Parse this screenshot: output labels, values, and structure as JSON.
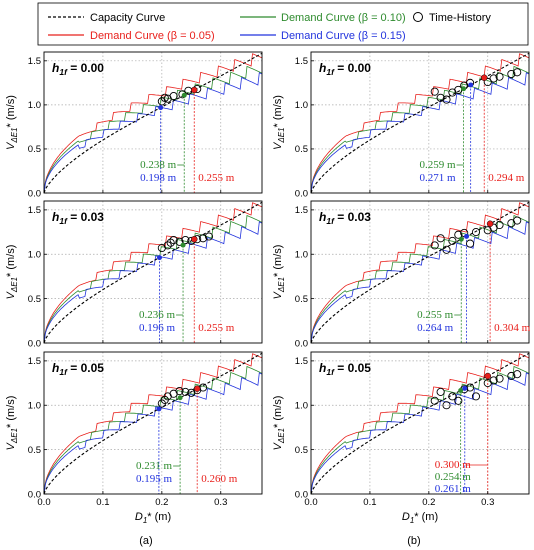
{
  "legend": {
    "items": [
      {
        "label": "Capacity Curve",
        "color": "#000000",
        "style": "dashed"
      },
      {
        "label": "Demand Curve (β = 0.05)",
        "color": "#e8201c",
        "style": "solid"
      },
      {
        "label": "Demand Curve (β = 0.10)",
        "color": "#2e8b2e",
        "style": "solid"
      },
      {
        "label": "Demand Curve (β = 0.15)",
        "color": "#2233dd",
        "style": "solid"
      },
      {
        "label": "Time-History",
        "color": "#000000",
        "style": "circle"
      }
    ]
  },
  "colors": {
    "red": "#e8201c",
    "green": "#2e8b2e",
    "blue": "#2233dd",
    "black": "#000000"
  },
  "axes": {
    "ylabel_main": "V",
    "ylabel_sub": "ΔE1",
    "ylabel_unit": "* (m/s)",
    "xlabel_main": "D",
    "xlabel_sub": "1",
    "xlabel_sub2": "max",
    "xlabel_unit": "* (m)",
    "xticks": [
      "0.0",
      "0.1",
      "0.2",
      "0.3"
    ],
    "yticks": [
      "0.0",
      "0.5",
      "1.0",
      "1.5"
    ],
    "xlim": [
      0,
      0.37
    ],
    "ylim": [
      0,
      1.6
    ]
  },
  "column_labels": [
    "(a)",
    "(b)"
  ],
  "chart_data": [
    {
      "type": "line",
      "panel": "a1",
      "h_label": "0.00",
      "annotations": [
        {
          "text": "0.238 m",
          "color": "green"
        },
        {
          "text": "0.198 m",
          "color": "blue"
        },
        {
          "text": "0.255 m",
          "color": "red"
        }
      ],
      "intersections": {
        "red": 0.255,
        "green": 0.238,
        "blue": 0.198
      },
      "time_history": [
        [
          0.2,
          1.04
        ],
        [
          0.205,
          1.08
        ],
        [
          0.21,
          1.07
        ],
        [
          0.22,
          1.1
        ],
        [
          0.235,
          1.12
        ],
        [
          0.245,
          1.16
        ],
        [
          0.26,
          1.18
        ]
      ]
    },
    {
      "type": "line",
      "panel": "a2",
      "h_label": "0.03",
      "annotations": [
        {
          "text": "0.236 m",
          "color": "green"
        },
        {
          "text": "0.196 m",
          "color": "blue"
        },
        {
          "text": "0.255 m",
          "color": "red"
        }
      ],
      "intersections": {
        "red": 0.255,
        "green": 0.236,
        "blue": 0.196
      },
      "time_history": [
        [
          0.2,
          1.07
        ],
        [
          0.21,
          1.1
        ],
        [
          0.215,
          1.13
        ],
        [
          0.22,
          1.16
        ],
        [
          0.23,
          1.14
        ],
        [
          0.24,
          1.16
        ],
        [
          0.25,
          1.15
        ],
        [
          0.26,
          1.17
        ],
        [
          0.27,
          1.18
        ],
        [
          0.28,
          1.2
        ]
      ]
    },
    {
      "type": "line",
      "panel": "a3",
      "h_label": "0.05",
      "annotations": [
        {
          "text": "0.231 m",
          "color": "green"
        },
        {
          "text": "0.195 m",
          "color": "blue"
        },
        {
          "text": "0.260 m",
          "color": "red"
        }
      ],
      "intersections": {
        "red": 0.26,
        "green": 0.231,
        "blue": 0.195
      },
      "time_history": [
        [
          0.2,
          1.02
        ],
        [
          0.205,
          1.06
        ],
        [
          0.21,
          1.1
        ],
        [
          0.22,
          1.13
        ],
        [
          0.23,
          1.16
        ],
        [
          0.24,
          1.15
        ],
        [
          0.25,
          1.14
        ],
        [
          0.26,
          1.17
        ],
        [
          0.27,
          1.2
        ]
      ]
    },
    {
      "type": "line",
      "panel": "b1",
      "h_label": "0.00",
      "annotations": [
        {
          "text": "0.259 m",
          "color": "green"
        },
        {
          "text": "0.271 m",
          "color": "blue"
        },
        {
          "text": "0.294 m",
          "color": "red"
        }
      ],
      "intersections": {
        "red": 0.294,
        "green": 0.259,
        "blue": 0.271
      },
      "time_history": [
        [
          0.21,
          1.15
        ],
        [
          0.22,
          1.08
        ],
        [
          0.23,
          1.06
        ],
        [
          0.24,
          1.14
        ],
        [
          0.25,
          1.17
        ],
        [
          0.26,
          1.22
        ],
        [
          0.27,
          1.25
        ],
        [
          0.3,
          1.26
        ],
        [
          0.31,
          1.3
        ],
        [
          0.32,
          1.32
        ],
        [
          0.34,
          1.35
        ],
        [
          0.35,
          1.37
        ]
      ]
    },
    {
      "type": "line",
      "panel": "b2",
      "h_label": "0.03",
      "annotations": [
        {
          "text": "0.255 m",
          "color": "green"
        },
        {
          "text": "0.264 m",
          "color": "blue"
        },
        {
          "text": "0.304 m",
          "color": "red"
        }
      ],
      "intersections": {
        "red": 0.304,
        "green": 0.255,
        "blue": 0.264
      },
      "time_history": [
        [
          0.21,
          1.1
        ],
        [
          0.22,
          1.18
        ],
        [
          0.23,
          1.05
        ],
        [
          0.24,
          1.15
        ],
        [
          0.25,
          1.22
        ],
        [
          0.26,
          1.24
        ],
        [
          0.27,
          1.12
        ],
        [
          0.28,
          1.25
        ],
        [
          0.3,
          1.27
        ],
        [
          0.31,
          1.3
        ],
        [
          0.32,
          1.33
        ],
        [
          0.34,
          1.35
        ],
        [
          0.35,
          1.38
        ]
      ]
    },
    {
      "type": "line",
      "panel": "b3",
      "h_label": "0.05",
      "annotations": [
        {
          "text": "0.300 m",
          "color": "red"
        },
        {
          "text": "0.254 m",
          "color": "green"
        },
        {
          "text": "0.261 m",
          "color": "blue"
        }
      ],
      "intersections": {
        "red": 0.3,
        "green": 0.254,
        "blue": 0.261
      },
      "time_history": [
        [
          0.21,
          1.05
        ],
        [
          0.22,
          1.15
        ],
        [
          0.23,
          1.0
        ],
        [
          0.24,
          1.1
        ],
        [
          0.25,
          1.05
        ],
        [
          0.26,
          1.18
        ],
        [
          0.27,
          1.2
        ],
        [
          0.28,
          1.1
        ],
        [
          0.3,
          1.25
        ],
        [
          0.31,
          1.28
        ],
        [
          0.32,
          1.3
        ],
        [
          0.34,
          1.33
        ],
        [
          0.35,
          1.35
        ]
      ]
    }
  ]
}
